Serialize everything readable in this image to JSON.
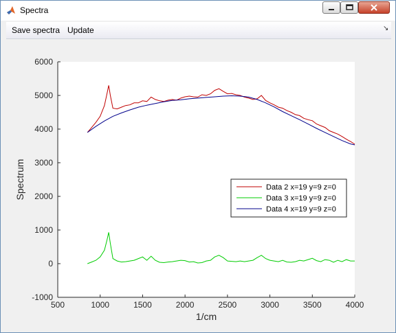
{
  "window": {
    "title": "Spectra",
    "controls": {
      "minimize": "minimize",
      "maximize": "maximize",
      "close": "close"
    }
  },
  "menu": {
    "save_spectra": "Save spectra",
    "update": "Update",
    "dock_icon": "dock-arrow-icon"
  },
  "chart_data": {
    "type": "line",
    "xlabel": "1/cm",
    "ylabel": "Spectrum",
    "xlim": [
      500,
      4000
    ],
    "ylim": [
      -1000,
      6000
    ],
    "xticks": [
      "500",
      "1000",
      "1500",
      "2000",
      "2500",
      "3000",
      "3500",
      "4000"
    ],
    "yticks": [
      "-1000",
      "0",
      "1000",
      "2000",
      "3000",
      "4000",
      "5000",
      "6000"
    ],
    "grid": false,
    "legend_position": "middle-right",
    "series": [
      {
        "name": "Data 2 x=19 y=9 z=0",
        "color": "#c00000",
        "x": [
          850,
          900,
          950,
          1000,
          1050,
          1080,
          1100,
          1120,
          1150,
          1200,
          1250,
          1300,
          1350,
          1400,
          1450,
          1500,
          1550,
          1600,
          1650,
          1700,
          1750,
          1800,
          1850,
          1900,
          1950,
          2000,
          2050,
          2100,
          2150,
          2200,
          2250,
          2300,
          2350,
          2400,
          2450,
          2500,
          2550,
          2600,
          2650,
          2700,
          2750,
          2800,
          2850,
          2900,
          2950,
          3000,
          3050,
          3100,
          3150,
          3200,
          3250,
          3300,
          3350,
          3400,
          3450,
          3500,
          3550,
          3600,
          3650,
          3700,
          3750,
          3800,
          3850,
          3900,
          3950,
          4000
        ],
        "values": [
          3900,
          4050,
          4200,
          4380,
          4700,
          5050,
          5300,
          5000,
          4620,
          4600,
          4650,
          4700,
          4720,
          4780,
          4780,
          4840,
          4820,
          4950,
          4880,
          4840,
          4820,
          4860,
          4880,
          4860,
          4920,
          4960,
          4980,
          4960,
          4950,
          5020,
          5000,
          5050,
          5150,
          5200,
          5120,
          5050,
          5060,
          5020,
          5000,
          4950,
          4920,
          4880,
          4900,
          5000,
          4850,
          4780,
          4720,
          4650,
          4620,
          4550,
          4500,
          4430,
          4400,
          4320,
          4280,
          4250,
          4150,
          4100,
          4050,
          3950,
          3900,
          3850,
          3780,
          3700,
          3630,
          3550
        ]
      },
      {
        "name": "Data 3 x=19 y=9 z=0",
        "color": "#00cc00",
        "x": [
          850,
          900,
          950,
          1000,
          1050,
          1080,
          1100,
          1120,
          1150,
          1200,
          1250,
          1300,
          1350,
          1400,
          1450,
          1500,
          1550,
          1600,
          1650,
          1700,
          1750,
          1800,
          1850,
          1900,
          1950,
          2000,
          2050,
          2100,
          2150,
          2200,
          2250,
          2300,
          2350,
          2400,
          2450,
          2500,
          2550,
          2600,
          2650,
          2700,
          2750,
          2800,
          2850,
          2900,
          2950,
          3000,
          3050,
          3100,
          3150,
          3200,
          3250,
          3300,
          3350,
          3400,
          3450,
          3500,
          3550,
          3600,
          3650,
          3700,
          3750,
          3800,
          3850,
          3900,
          3950,
          4000
        ],
        "values": [
          0,
          50,
          100,
          200,
          400,
          700,
          930,
          600,
          150,
          80,
          50,
          60,
          80,
          100,
          150,
          200,
          100,
          220,
          100,
          40,
          30,
          50,
          60,
          80,
          100,
          90,
          50,
          60,
          20,
          30,
          80,
          100,
          200,
          250,
          180,
          80,
          70,
          60,
          80,
          60,
          80,
          100,
          180,
          250,
          150,
          100,
          80,
          60,
          100,
          50,
          40,
          60,
          100,
          80,
          120,
          160,
          90,
          60,
          120,
          100,
          40,
          100,
          60,
          120,
          80,
          80
        ]
      },
      {
        "name": "Data 4 x=19 y=9 z=0",
        "color": "#00008b",
        "x": [
          850,
          950,
          1050,
          1150,
          1250,
          1350,
          1450,
          1550,
          1650,
          1750,
          1850,
          1950,
          2050,
          2150,
          2250,
          2350,
          2450,
          2550,
          2650,
          2750,
          2850,
          2950,
          3050,
          3150,
          3250,
          3350,
          3450,
          3550,
          3650,
          3750,
          3850,
          3950,
          4000
        ],
        "values": [
          3900,
          4080,
          4240,
          4380,
          4480,
          4570,
          4650,
          4710,
          4760,
          4810,
          4850,
          4870,
          4900,
          4920,
          4940,
          4960,
          4980,
          4990,
          4980,
          4950,
          4880,
          4780,
          4660,
          4520,
          4400,
          4280,
          4150,
          4020,
          3900,
          3780,
          3660,
          3560,
          3530
        ]
      }
    ]
  }
}
